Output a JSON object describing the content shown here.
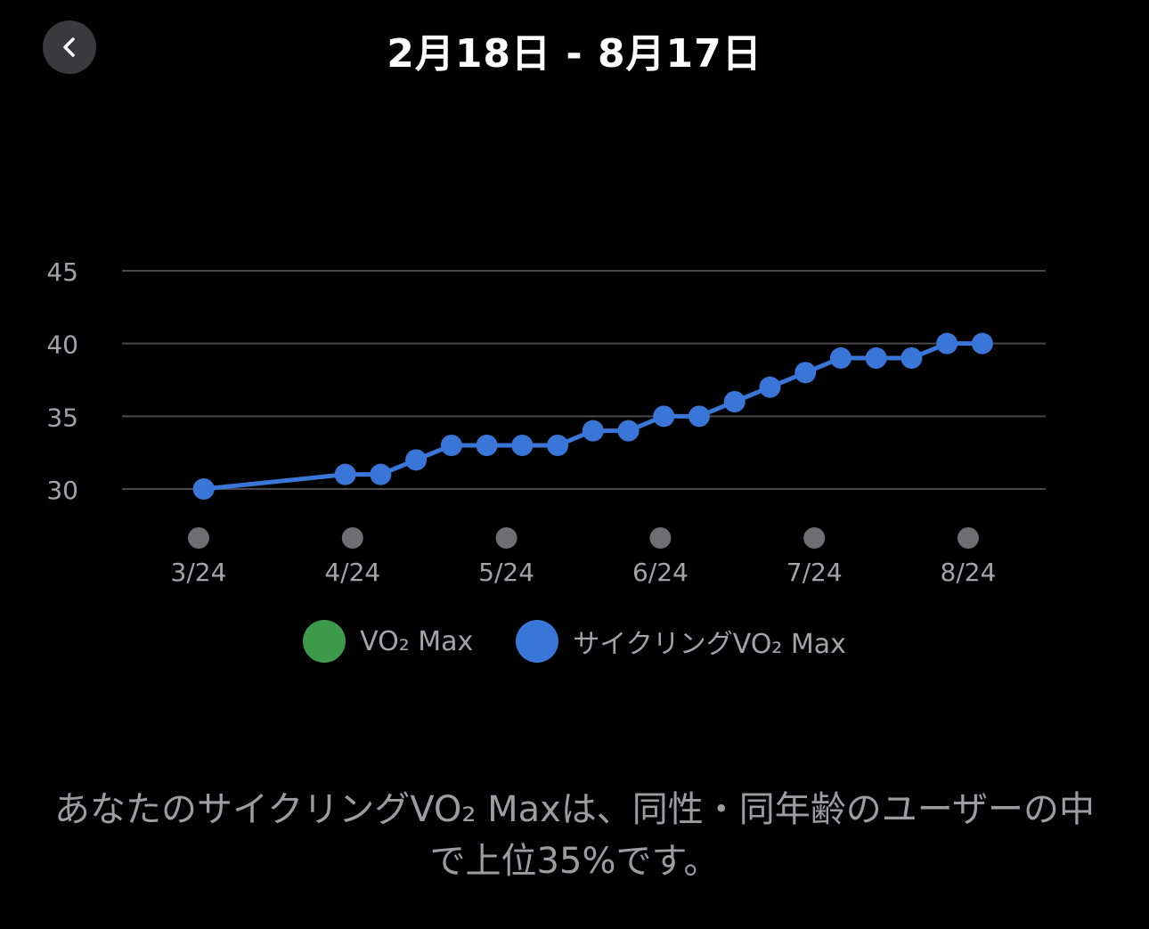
{
  "header": {
    "title": "2月18日 - 8月17日",
    "back_icon": "chevron-left-icon"
  },
  "chart_data": {
    "type": "line",
    "title": "",
    "xlabel": "",
    "ylabel": "",
    "ylim": [
      30,
      45
    ],
    "y_ticks": [
      "45",
      "40",
      "35",
      "30"
    ],
    "x_tick_labels": [
      "3/24",
      "4/24",
      "5/24",
      "6/24",
      "7/24",
      "8/24"
    ],
    "grid": true,
    "series": [
      {
        "name": "サイクリングVO₂ Max",
        "color": "#3a76d8",
        "points": [
          {
            "x": "2024-03-25",
            "y": 30
          },
          {
            "x": "2024-04-22",
            "y": 31
          },
          {
            "x": "2024-04-29",
            "y": 31
          },
          {
            "x": "2024-05-06",
            "y": 32
          },
          {
            "x": "2024-05-13",
            "y": 33
          },
          {
            "x": "2024-05-20",
            "y": 33
          },
          {
            "x": "2024-05-27",
            "y": 33
          },
          {
            "x": "2024-06-03",
            "y": 33
          },
          {
            "x": "2024-06-10",
            "y": 34
          },
          {
            "x": "2024-06-17",
            "y": 34
          },
          {
            "x": "2024-06-24",
            "y": 35
          },
          {
            "x": "2024-07-01",
            "y": 35
          },
          {
            "x": "2024-07-08",
            "y": 36
          },
          {
            "x": "2024-07-15",
            "y": 37
          },
          {
            "x": "2024-07-22",
            "y": 38
          },
          {
            "x": "2024-07-29",
            "y": 39
          },
          {
            "x": "2024-08-05",
            "y": 39
          },
          {
            "x": "2024-08-12",
            "y": 39
          },
          {
            "x": "2024-08-19",
            "y": 40
          },
          {
            "x": "2024-08-26",
            "y": 40
          }
        ]
      }
    ]
  },
  "legend": {
    "items": [
      {
        "label": "VO₂ Max",
        "color": "#3e9a4b"
      },
      {
        "label": "サイクリングVO₂ Max",
        "color": "#3a76d8"
      }
    ]
  },
  "footer": {
    "text": "あなたのサイクリングVO₂ Maxは、同性・同年齢のユーザーの中で上位35%です。"
  },
  "colors": {
    "background": "#000000",
    "gridline": "#48484a",
    "tick_dot": "#6e6e73",
    "axis_text": "#a3a3a8",
    "back_button_bg": "#3a3a3c"
  }
}
